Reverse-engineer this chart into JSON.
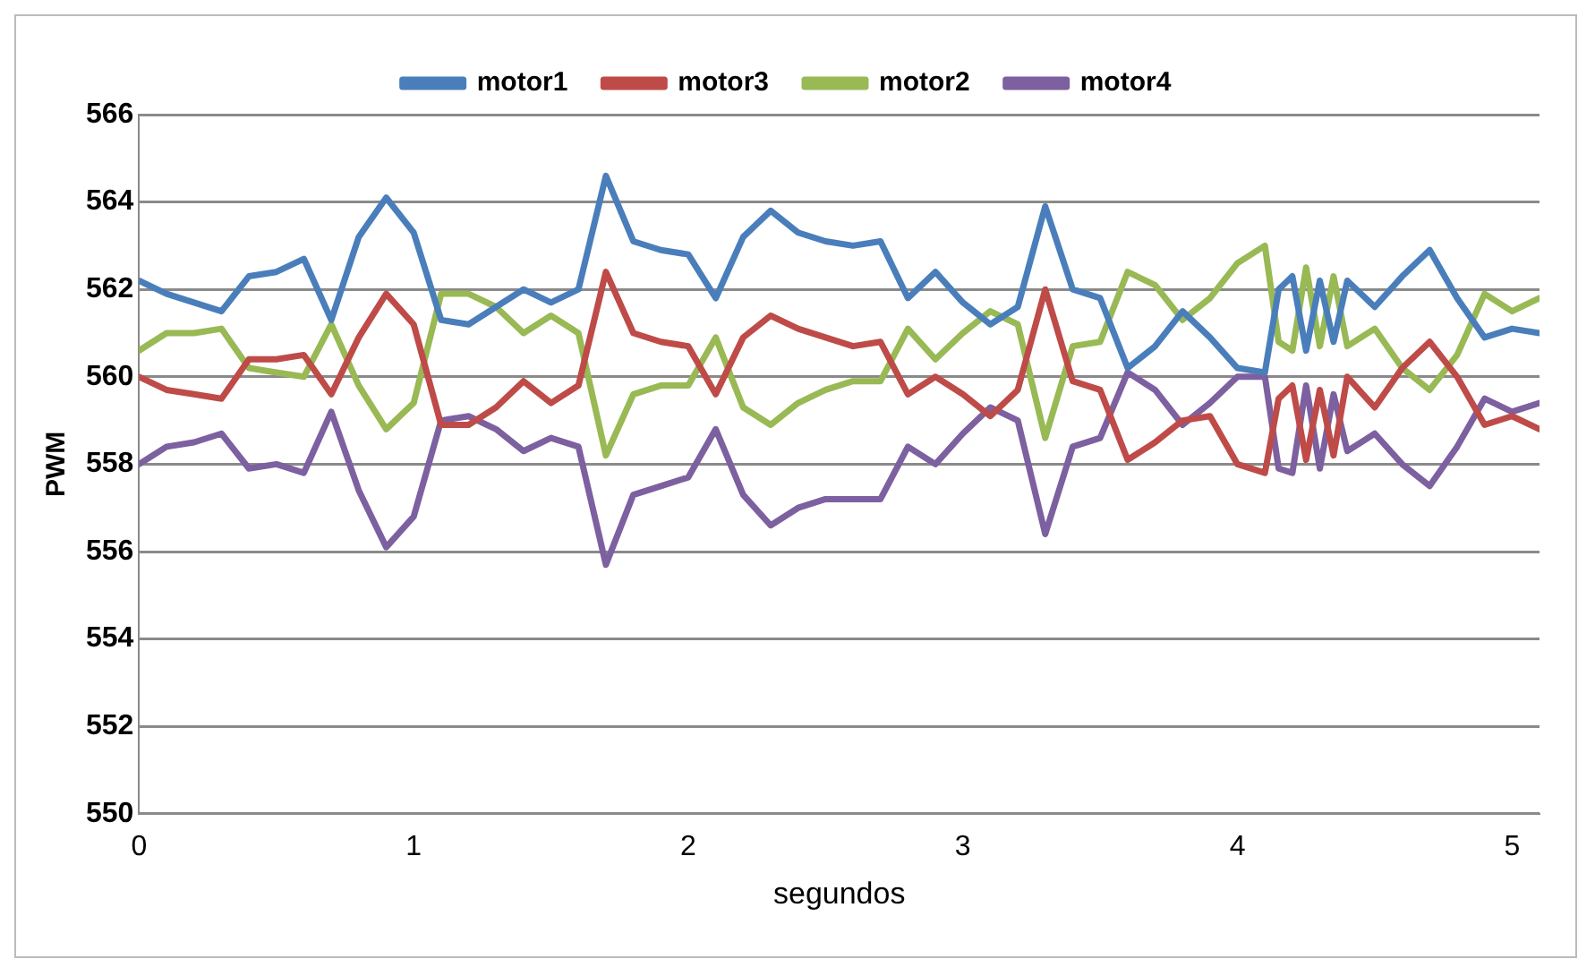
{
  "chart_data": {
    "type": "line",
    "xlabel": "segundos",
    "ylabel": "PWM",
    "x": [
      0,
      0.1,
      0.2,
      0.3,
      0.4,
      0.5,
      0.6,
      0.7,
      0.8,
      0.9,
      1.0,
      1.1,
      1.2,
      1.3,
      1.4,
      1.5,
      1.6,
      1.7,
      1.8,
      1.9,
      2.0,
      2.1,
      2.2,
      2.3,
      2.4,
      2.5,
      2.6,
      2.7,
      2.8,
      2.9,
      3.0,
      3.1,
      3.2,
      3.3,
      3.4,
      3.5,
      3.6,
      3.7,
      3.8,
      3.9,
      4.0,
      4.1,
      4.15,
      4.2,
      4.25,
      4.3,
      4.35,
      4.4,
      4.5,
      4.6,
      4.7,
      4.8,
      4.9,
      5.0,
      5.1
    ],
    "series": [
      {
        "name": "motor1",
        "color": "#4a7ebb",
        "values": [
          562.2,
          561.9,
          561.7,
          561.5,
          562.3,
          562.4,
          562.7,
          561.3,
          563.2,
          564.1,
          563.3,
          561.3,
          561.2,
          561.6,
          562.0,
          561.7,
          562.0,
          564.6,
          563.1,
          562.9,
          562.8,
          561.8,
          563.2,
          563.8,
          563.3,
          563.1,
          563.0,
          563.1,
          561.8,
          562.4,
          561.7,
          561.2,
          561.6,
          563.9,
          562.0,
          561.8,
          560.2,
          560.7,
          561.5,
          560.9,
          560.2,
          560.1,
          562.0,
          562.3,
          560.6,
          562.2,
          560.8,
          562.2,
          561.6,
          562.3,
          562.9,
          561.8,
          560.9,
          561.1,
          561.0
        ]
      },
      {
        "name": "motor3",
        "color": "#be4b48",
        "values": [
          560.0,
          559.7,
          559.6,
          559.5,
          560.4,
          560.4,
          560.5,
          559.6,
          560.9,
          561.9,
          561.2,
          558.9,
          558.9,
          559.3,
          559.9,
          559.4,
          559.8,
          562.4,
          561.0,
          560.8,
          560.7,
          559.6,
          560.9,
          561.4,
          561.1,
          560.9,
          560.7,
          560.8,
          559.6,
          560.0,
          559.6,
          559.1,
          559.7,
          562.0,
          559.9,
          559.7,
          558.1,
          558.5,
          559.0,
          559.1,
          558.0,
          557.8,
          559.5,
          559.8,
          558.1,
          559.7,
          558.2,
          560.0,
          559.3,
          560.2,
          560.8,
          560.0,
          558.9,
          559.1,
          558.8
        ]
      },
      {
        "name": "motor2",
        "color": "#98b954",
        "values": [
          560.6,
          561.0,
          561.0,
          561.1,
          560.2,
          560.1,
          560.0,
          561.2,
          559.8,
          558.8,
          559.4,
          561.9,
          561.9,
          561.6,
          561.0,
          561.4,
          561.0,
          558.2,
          559.6,
          559.8,
          559.8,
          560.9,
          559.3,
          558.9,
          559.4,
          559.7,
          559.9,
          559.9,
          561.1,
          560.4,
          561.0,
          561.5,
          561.2,
          558.6,
          560.7,
          560.8,
          562.4,
          562.1,
          561.3,
          561.8,
          562.6,
          563.0,
          560.8,
          560.6,
          562.5,
          560.7,
          562.3,
          560.7,
          561.1,
          560.2,
          559.7,
          560.5,
          561.9,
          561.5,
          561.8
        ]
      },
      {
        "name": "motor4",
        "color": "#7d60a0",
        "values": [
          558.0,
          558.4,
          558.5,
          558.7,
          557.9,
          558.0,
          557.8,
          559.2,
          557.4,
          556.1,
          556.8,
          559.0,
          559.1,
          558.8,
          558.3,
          558.6,
          558.4,
          555.7,
          557.3,
          557.5,
          557.7,
          558.8,
          557.3,
          556.6,
          557.0,
          557.2,
          557.2,
          557.2,
          558.4,
          558.0,
          558.7,
          559.3,
          559.0,
          556.4,
          558.4,
          558.6,
          560.1,
          559.7,
          558.9,
          559.4,
          560.0,
          560.0,
          557.9,
          557.8,
          559.8,
          557.9,
          559.6,
          558.3,
          558.7,
          558.0,
          557.5,
          558.4,
          559.5,
          559.2,
          559.4
        ]
      }
    ],
    "xlim": [
      0,
      5.1
    ],
    "xticks": [
      0,
      1,
      2,
      3,
      4,
      5
    ],
    "ylim": [
      550,
      566
    ],
    "yticks": [
      550,
      552,
      554,
      556,
      558,
      560,
      562,
      564,
      566
    ],
    "grid": "y",
    "legend": "top",
    "marker": "none",
    "line_style": "solid"
  }
}
